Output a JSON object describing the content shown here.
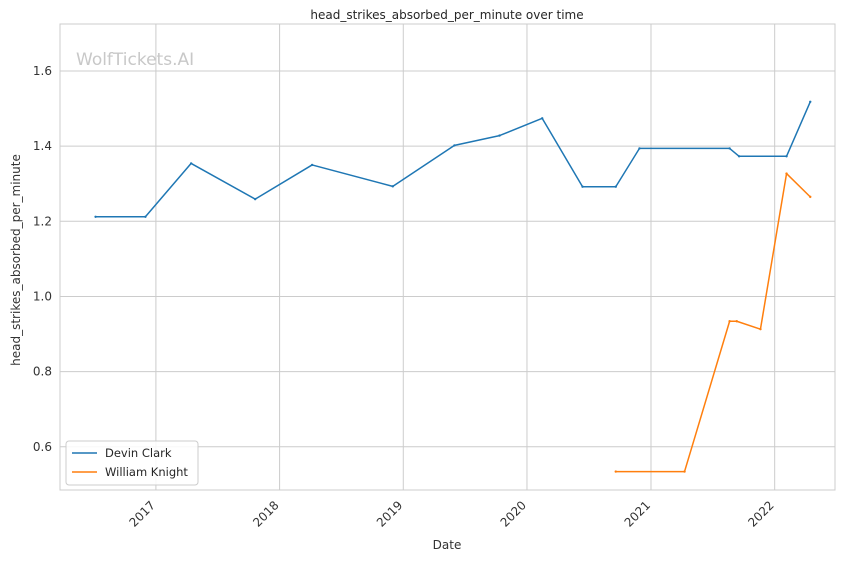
{
  "watermark": "WolfTickets.AI",
  "chart_data": {
    "type": "line",
    "title": "head_strikes_absorbed_per_minute over time",
    "xlabel": "Date",
    "ylabel": "head_strikes_absorbed_per_minute",
    "x_type": "date",
    "xlim": [
      "2016-03-24",
      "2022-06-28"
    ],
    "ylim": [
      0.485,
      1.725
    ],
    "x_ticks": [
      "2017-01-01",
      "2018-01-01",
      "2019-01-01",
      "2020-01-01",
      "2021-01-01",
      "2022-01-01"
    ],
    "x_tick_labels": [
      "2017",
      "2018",
      "2019",
      "2020",
      "2021",
      "2022"
    ],
    "y_ticks": [
      0.6,
      0.8,
      1.0,
      1.2,
      1.4,
      1.6
    ],
    "y_tick_labels": [
      "0.6",
      "0.8",
      "1.0",
      "1.2",
      "1.4",
      "1.6"
    ],
    "grid": true,
    "legend_position": "lower-left",
    "series": [
      {
        "name": "Devin Clark",
        "color": "#1f77b4",
        "points": [
          [
            "2016-07-07",
            1.212
          ],
          [
            "2016-12-01",
            1.212
          ],
          [
            "2017-04-15",
            1.354
          ],
          [
            "2017-10-21",
            1.259
          ],
          [
            "2018-04-07",
            1.35
          ],
          [
            "2018-12-01",
            1.293
          ],
          [
            "2019-06-01",
            1.402
          ],
          [
            "2019-10-12",
            1.428
          ],
          [
            "2020-02-15",
            1.474
          ],
          [
            "2020-06-13",
            1.292
          ],
          [
            "2020-09-19",
            1.292
          ],
          [
            "2020-11-28",
            1.394
          ],
          [
            "2021-08-21",
            1.394
          ],
          [
            "2021-09-18",
            1.373
          ],
          [
            "2022-02-05",
            1.373
          ],
          [
            "2022-04-16",
            1.518
          ]
        ]
      },
      {
        "name": "William Knight",
        "color": "#ff7f0e",
        "points": [
          [
            "2020-09-19",
            0.534
          ],
          [
            "2021-04-10",
            0.534
          ],
          [
            "2021-08-21",
            0.934
          ],
          [
            "2021-09-11",
            0.934
          ],
          [
            "2021-11-20",
            0.913
          ],
          [
            "2022-02-05",
            1.327
          ],
          [
            "2022-04-16",
            1.265
          ]
        ]
      }
    ]
  }
}
